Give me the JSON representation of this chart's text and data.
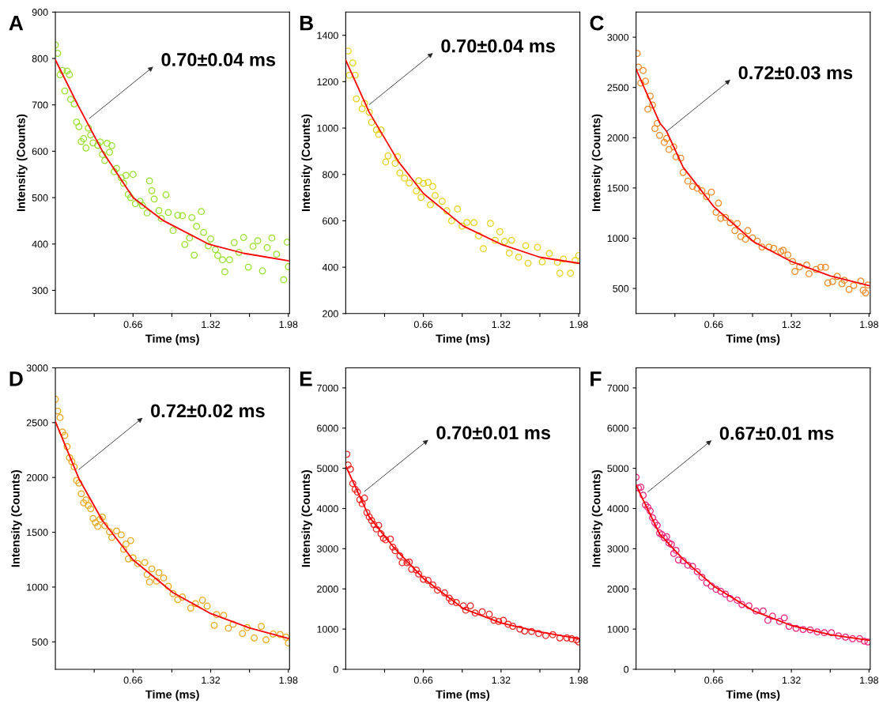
{
  "chart_data": [
    {
      "type": "scatter",
      "title": "A",
      "xlabel": "Time (ms)",
      "ylabel": "Intensity (Counts)",
      "xlim": [
        0,
        1.99
      ],
      "ylim": [
        250,
        900
      ],
      "xticks": [
        {
          "value": 0.33,
          "label": null
        },
        0.66,
        {
          "value": 0.99,
          "label": null
        },
        1.32,
        {
          "value": 1.65,
          "label": null
        },
        1.98
      ],
      "yticks": [
        300,
        400,
        500,
        600,
        700,
        800,
        900
      ],
      "grid": false,
      "annotations": [
        {
          "text": "0.70±0.04 ms",
          "x": 0.29,
          "y": 671
        }
      ],
      "series": [
        {
          "marker": "circle",
          "color": "#99e033",
          "x": [
            0.0,
            0.02,
            0.04,
            0.06,
            0.08,
            0.1,
            0.12,
            0.13,
            0.16,
            0.18,
            0.2,
            0.22,
            0.24,
            0.26,
            0.28,
            0.3,
            0.32,
            0.36,
            0.38,
            0.4,
            0.42,
            0.44,
            0.46,
            0.48,
            0.5,
            0.52,
            0.56,
            0.58,
            0.6,
            0.62,
            0.64,
            0.66,
            0.68,
            0.72,
            0.74,
            0.78,
            0.8,
            0.82,
            0.84,
            0.88,
            0.9,
            0.94,
            0.96,
            1.0,
            1.04,
            1.08,
            1.1,
            1.14,
            1.16,
            1.18,
            1.2,
            1.24,
            1.26,
            1.3,
            1.32,
            1.36,
            1.38,
            1.42,
            1.44,
            1.48,
            1.52,
            1.56,
            1.6,
            1.64,
            1.68,
            1.72,
            1.76,
            1.8,
            1.84,
            1.88,
            1.94,
            1.97,
            1.98
          ],
          "values": [
            829,
            811,
            765,
            774,
            730,
            773,
            765,
            712,
            702,
            663,
            653,
            621,
            627,
            607,
            650,
            635,
            618,
            613,
            620,
            593,
            580,
            617,
            598,
            612,
            556,
            563,
            543,
            531,
            548,
            507,
            500,
            550,
            487,
            492,
            483,
            467,
            536,
            515,
            497,
            472,
            455,
            506,
            468,
            429,
            462,
            461,
            399,
            413,
            457,
            376,
            438,
            470,
            425,
            396,
            411,
            388,
            375,
            366,
            340,
            366,
            403,
            382,
            414,
            350,
            395,
            407,
            342,
            392,
            413,
            378,
            323,
            404,
            351
          ]
        },
        {
          "type": "line",
          "marker": "none",
          "color": "#ff0000",
          "x": [
            0,
            0.19,
            0.4,
            0.66,
            0.92,
            1.3,
            1.6,
            1.98
          ],
          "values": [
            797,
            700,
            600,
            500,
            450,
            400,
            380,
            364
          ]
        }
      ]
    },
    {
      "type": "scatter",
      "title": "B",
      "xlabel": "Time (ms)",
      "ylabel": "Intensity (Counts)",
      "xlim": [
        0,
        1.99
      ],
      "ylim": [
        200,
        1500
      ],
      "xticks": [
        {
          "value": 0.33,
          "label": null
        },
        0.66,
        {
          "value": 0.99,
          "label": null
        },
        1.32,
        {
          "value": 1.65,
          "label": null
        },
        1.98
      ],
      "yticks": [
        200,
        400,
        600,
        800,
        1000,
        1200,
        1400
      ],
      "grid": false,
      "annotations": [
        {
          "text": "0.70±0.04 ms",
          "x": 0.2,
          "y": 1101
        }
      ],
      "series": [
        {
          "marker": "circle",
          "color": "#e6d21a",
          "x": [
            0.02,
            0.03,
            0.06,
            0.08,
            0.09,
            0.14,
            0.16,
            0.2,
            0.22,
            0.26,
            0.28,
            0.3,
            0.34,
            0.36,
            0.42,
            0.44,
            0.46,
            0.5,
            0.54,
            0.6,
            0.62,
            0.64,
            0.66,
            0.7,
            0.72,
            0.74,
            0.76,
            0.82,
            0.86,
            0.9,
            0.95,
            0.99,
            1.03,
            1.09,
            1.13,
            1.17,
            1.23,
            1.27,
            1.31,
            1.35,
            1.39,
            1.41,
            1.47,
            1.53,
            1.55,
            1.63,
            1.67,
            1.73,
            1.8,
            1.82,
            1.85,
            1.91,
            1.95,
            1.98
          ],
          "values": [
            1332,
            1228,
            1281,
            1228,
            1126,
            1083,
            1107,
            1068,
            1025,
            992,
            973,
            992,
            854,
            880,
            848,
            876,
            806,
            784,
            763,
            729,
            773,
            701,
            761,
            766,
            669,
            748,
            709,
            684,
            643,
            600,
            651,
            577,
            593,
            592,
            535,
            480,
            589,
            516,
            553,
            511,
            461,
            516,
            443,
            493,
            417,
            486,
            423,
            459,
            421,
            374,
            435,
            374,
            429,
            450
          ]
        },
        {
          "type": "line",
          "marker": "none",
          "color": "#ff0000",
          "x": [
            0,
            0.2,
            0.45,
            0.66,
            1.0,
            1.32,
            1.65,
            1.98
          ],
          "values": [
            1293,
            1068,
            854,
            718,
            577,
            499,
            443,
            417
          ]
        }
      ]
    },
    {
      "type": "scatter",
      "title": "C",
      "xlabel": "Time (ms)",
      "ylabel": "Intensity (Counts)",
      "xlim": [
        0,
        1.99
      ],
      "ylim": [
        250,
        3250
      ],
      "xticks": [
        {
          "value": 0.33,
          "label": null
        },
        0.66,
        {
          "value": 0.99,
          "label": null
        },
        1.32,
        {
          "value": 1.65,
          "label": null
        },
        1.98
      ],
      "yticks": [
        500,
        1000,
        1500,
        2000,
        2500,
        3000
      ],
      "grid": false,
      "annotations": [
        {
          "text": "0.72±0.03 ms",
          "x": 0.26,
          "y": 2063
        }
      ],
      "series": [
        {
          "marker": "circle",
          "color": "#f08a28",
          "x": [
            0.01,
            0.02,
            0.04,
            0.06,
            0.08,
            0.1,
            0.12,
            0.14,
            0.16,
            0.18,
            0.2,
            0.24,
            0.26,
            0.28,
            0.32,
            0.34,
            0.38,
            0.4,
            0.44,
            0.48,
            0.52,
            0.56,
            0.6,
            0.64,
            0.68,
            0.7,
            0.72,
            0.76,
            0.8,
            0.84,
            0.86,
            0.89,
            0.93,
            0.95,
            0.99,
            1.03,
            1.07,
            1.13,
            1.17,
            1.23,
            1.25,
            1.29,
            1.33,
            1.35,
            1.39,
            1.45,
            1.47,
            1.53,
            1.57,
            1.61,
            1.63,
            1.67,
            1.71,
            1.75,
            1.77,
            1.81,
            1.85,
            1.91,
            1.93,
            1.95,
            1.97
          ],
          "values": [
            2839,
            2703,
            2544,
            2669,
            2562,
            2284,
            2414,
            2326,
            2091,
            2143,
            2023,
            1953,
            1992,
            1883,
            1909,
            1810,
            1797,
            1654,
            1568,
            1516,
            1497,
            1471,
            1414,
            1458,
            1258,
            1349,
            1198,
            1206,
            1154,
            1076,
            1146,
            1016,
            990,
            1076,
            1003,
            971,
            912,
            912,
            899,
            867,
            880,
            833,
            768,
            669,
            716,
            732,
            646,
            690,
            711,
            711,
            555,
            568,
            620,
            547,
            581,
            490,
            529,
            573,
            482,
            456,
            534
          ]
        },
        {
          "type": "line",
          "marker": "none",
          "color": "#ff0000",
          "x": [
            0,
            0.2,
            0.26,
            0.4,
            0.66,
            1.0,
            1.32,
            1.65,
            1.98
          ],
          "values": [
            2682,
            2150,
            2063,
            1706,
            1315,
            964,
            768,
            625,
            529
          ]
        }
      ]
    },
    {
      "type": "scatter",
      "title": "D",
      "xlabel": "Time (ms)",
      "ylabel": "Intensity (Counts)",
      "xlim": [
        0,
        1.99
      ],
      "ylim": [
        250,
        3000
      ],
      "xticks": [
        {
          "value": 0.33,
          "label": null
        },
        0.66,
        {
          "value": 0.99,
          "label": null
        },
        1.32,
        {
          "value": 1.65,
          "label": null
        },
        1.98
      ],
      "yticks": [
        500,
        1000,
        1500,
        2000,
        2500,
        3000
      ],
      "grid": false,
      "annotations": [
        {
          "text": "0.72±0.02 ms",
          "x": 0.2,
          "y": 2073
        }
      ],
      "series": [
        {
          "marker": "circle",
          "color": "#eaa820",
          "x": [
            0.0,
            0.02,
            0.04,
            0.06,
            0.08,
            0.1,
            0.12,
            0.14,
            0.16,
            0.18,
            0.2,
            0.22,
            0.24,
            0.26,
            0.28,
            0.3,
            0.32,
            0.34,
            0.36,
            0.38,
            0.4,
            0.42,
            0.46,
            0.48,
            0.52,
            0.56,
            0.58,
            0.6,
            0.62,
            0.64,
            0.66,
            0.7,
            0.76,
            0.78,
            0.8,
            0.82,
            0.86,
            0.88,
            0.92,
            0.96,
            1.0,
            1.04,
            1.08,
            1.15,
            1.19,
            1.25,
            1.29,
            1.35,
            1.37,
            1.43,
            1.47,
            1.51,
            1.59,
            1.63,
            1.69,
            1.75,
            1.79,
            1.85,
            1.91,
            1.96,
            1.98
          ],
          "values": [
            2713,
            2606,
            2546,
            2414,
            2383,
            2281,
            2180,
            2145,
            2097,
            1973,
            1949,
            1851,
            1768,
            1794,
            1744,
            1714,
            1626,
            1588,
            1553,
            1619,
            1638,
            1560,
            1505,
            1453,
            1512,
            1476,
            1345,
            1393,
            1257,
            1424,
            1266,
            1214,
            1224,
            1114,
            1047,
            1166,
            1054,
            1131,
            1083,
            1007,
            940,
            885,
            909,
            808,
            849,
            880,
            826,
            651,
            749,
            742,
            625,
            661,
            577,
            630,
            536,
            642,
            519,
            572,
            567,
            543,
            490
          ]
        },
        {
          "type": "line",
          "marker": "none",
          "color": "#ff0000",
          "x": [
            0,
            0.2,
            0.4,
            0.66,
            1.0,
            1.32,
            1.65,
            1.98
          ],
          "values": [
            2510,
            1989,
            1607,
            1248,
            949,
            758,
            627,
            531
          ]
        }
      ]
    },
    {
      "type": "scatter",
      "title": "E",
      "xlabel": "Time (ms)",
      "ylabel": "Intensity (Counts)",
      "xlim": [
        0,
        1.99
      ],
      "ylim": [
        0,
        7500
      ],
      "xticks": [
        {
          "value": 0.33,
          "label": null
        },
        0.66,
        {
          "value": 0.99,
          "label": null
        },
        1.32,
        {
          "value": 1.65,
          "label": null
        },
        1.98
      ],
      "yticks": [
        0,
        1000,
        2000,
        3000,
        4000,
        5000,
        6000,
        7000
      ],
      "grid": false,
      "annotations": [
        {
          "text": "0.70±0.01 ms",
          "x": 0.16,
          "y": 4425
        }
      ],
      "series": [
        {
          "marker": "circle",
          "color": "#f02020",
          "x": [
            0.01,
            0.02,
            0.04,
            0.06,
            0.08,
            0.1,
            0.12,
            0.14,
            0.16,
            0.18,
            0.2,
            0.22,
            0.24,
            0.26,
            0.28,
            0.3,
            0.32,
            0.34,
            0.38,
            0.4,
            0.42,
            0.46,
            0.48,
            0.52,
            0.54,
            0.56,
            0.6,
            0.62,
            0.66,
            0.7,
            0.74,
            0.78,
            0.84,
            0.88,
            0.9,
            0.94,
            1.0,
            1.02,
            1.06,
            1.1,
            1.16,
            1.22,
            1.26,
            1.3,
            1.34,
            1.38,
            1.42,
            1.48,
            1.52,
            1.58,
            1.64,
            1.7,
            1.76,
            1.82,
            1.88,
            1.92,
            1.96,
            1.98
          ],
          "values": [
            5350,
            5080,
            4980,
            4620,
            4480,
            4410,
            4220,
            4120,
            4260,
            3900,
            3790,
            3700,
            3600,
            3490,
            3580,
            3370,
            3260,
            3220,
            3240,
            3040,
            2950,
            2820,
            2650,
            2650,
            2670,
            2490,
            2470,
            2370,
            2240,
            2210,
            2100,
            1970,
            1900,
            1770,
            1690,
            1660,
            1580,
            1470,
            1580,
            1400,
            1430,
            1370,
            1220,
            1190,
            1220,
            1120,
            1070,
            1000,
            950,
            940,
            890,
            840,
            860,
            780,
            780,
            760,
            730,
            680
          ]
        },
        {
          "type": "line",
          "marker": "none",
          "color": "#ff0000",
          "x": [
            0,
            0.2,
            0.4,
            0.66,
            1.0,
            1.32,
            1.65,
            1.98
          ],
          "values": [
            5060,
            3790,
            3060,
            2260,
            1510,
            1150,
            930,
            760
          ]
        }
      ]
    },
    {
      "type": "scatter",
      "title": "F",
      "xlabel": "Time (ms)",
      "ylabel": "Intensity (Counts)",
      "xlim": [
        0,
        1.99
      ],
      "ylim": [
        0,
        7500
      ],
      "xticks": [
        {
          "value": 0.33,
          "label": null
        },
        0.66,
        {
          "value": 0.99,
          "label": null
        },
        1.32,
        {
          "value": 1.65,
          "label": null
        },
        1.98
      ],
      "yticks": [
        0,
        1000,
        2000,
        3000,
        4000,
        5000,
        6000,
        7000
      ],
      "grid": false,
      "annotations": [
        {
          "text": "0.67±0.01 ms",
          "x": 0.1,
          "y": 4412
        }
      ],
      "series": [
        {
          "marker": "circle",
          "color": "#f0207a",
          "x": [
            0.0,
            0.02,
            0.04,
            0.06,
            0.08,
            0.1,
            0.12,
            0.14,
            0.16,
            0.18,
            0.2,
            0.22,
            0.24,
            0.26,
            0.28,
            0.3,
            0.32,
            0.34,
            0.36,
            0.4,
            0.44,
            0.48,
            0.52,
            0.56,
            0.6,
            0.64,
            0.68,
            0.72,
            0.76,
            0.8,
            0.86,
            0.9,
            0.96,
            1.02,
            1.08,
            1.12,
            1.16,
            1.22,
            1.26,
            1.3,
            1.36,
            1.42,
            1.48,
            1.54,
            1.6,
            1.66,
            1.72,
            1.78,
            1.84,
            1.9,
            1.94,
            1.97
          ],
          "values": [
            4780,
            4510,
            4530,
            4330,
            4090,
            4030,
            3940,
            3770,
            3650,
            3580,
            3390,
            3350,
            3270,
            3300,
            3140,
            3110,
            2880,
            2960,
            2720,
            2700,
            2590,
            2560,
            2430,
            2290,
            2150,
            2070,
            1990,
            1940,
            1870,
            1760,
            1720,
            1610,
            1580,
            1450,
            1450,
            1220,
            1320,
            1190,
            1280,
            1070,
            1020,
            990,
            980,
            930,
            910,
            910,
            830,
            800,
            760,
            760,
            700,
            680
          ]
        },
        {
          "type": "line",
          "marker": "none",
          "color": "#ff0000",
          "x": [
            0,
            0.2,
            0.4,
            0.66,
            1.0,
            1.32,
            1.65,
            1.98
          ],
          "values": [
            4580,
            3370,
            2740,
            2070,
            1450,
            1090,
            860,
            720
          ]
        }
      ]
    }
  ]
}
